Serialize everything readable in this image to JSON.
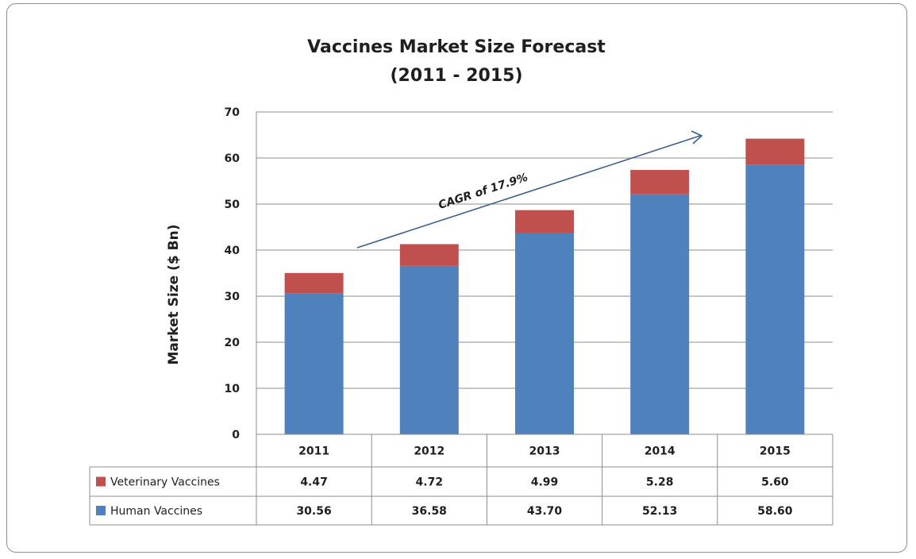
{
  "chart_data": {
    "type": "bar",
    "stacked": true,
    "title_line1": "Vaccines Market Size Forecast",
    "title_line2": "(2011 - 2015)",
    "ylabel": "Market Size ($ Bn)",
    "xlabel": "",
    "ylim": [
      0,
      70
    ],
    "yticks": [
      0,
      10,
      20,
      30,
      40,
      50,
      60,
      70
    ],
    "grid": true,
    "categories": [
      "2011",
      "2012",
      "2013",
      "2014",
      "2015"
    ],
    "series": [
      {
        "name": "Human Vaccines",
        "color": "#4f81bd",
        "values": [
          30.56,
          36.58,
          43.7,
          52.13,
          58.6
        ],
        "labels": [
          "30.56",
          "36.58",
          "43.70",
          "52.13",
          "58.60"
        ]
      },
      {
        "name": "Veterinary Vaccines",
        "color": "#c0504d",
        "values": [
          4.47,
          4.72,
          4.99,
          5.28,
          5.6
        ],
        "labels": [
          "4.47",
          "4.72",
          "4.99",
          "5.28",
          "5.60"
        ]
      }
    ],
    "legend": "data-table",
    "annotation": {
      "text": "CAGR of 17.9%",
      "color": "#3c5f8f"
    }
  }
}
